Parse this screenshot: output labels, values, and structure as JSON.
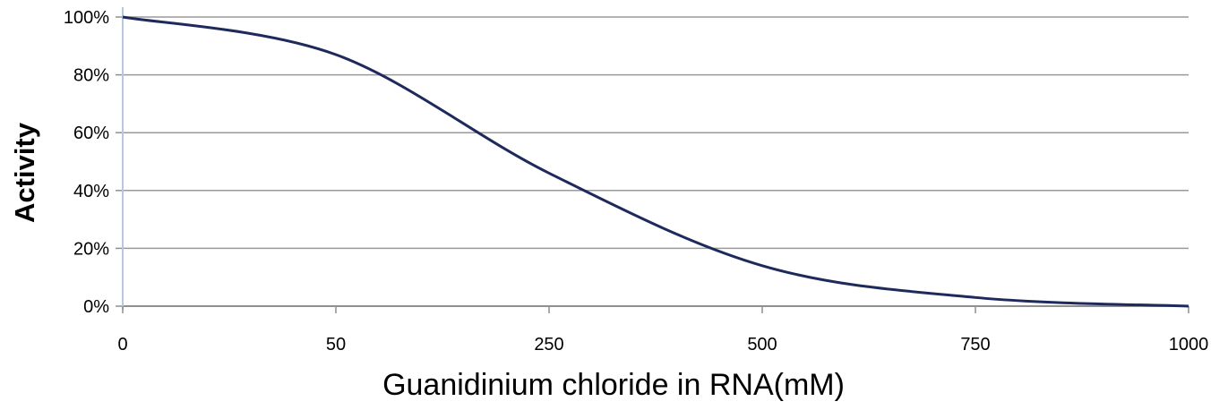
{
  "chart_data": {
    "type": "line",
    "xlabel": "Guanidinium chloride in RNA(mM)",
    "ylabel": "Activity",
    "x_ticks": [
      "0",
      "50",
      "250",
      "500",
      "750",
      "1000"
    ],
    "y_ticks": [
      "0%",
      "20%",
      "40%",
      "60%",
      "80%",
      "100%"
    ],
    "ylim": [
      0,
      100
    ],
    "grid": "horizontal",
    "legend": "none",
    "line_color": "#1f2a5c",
    "series": [
      {
        "x": [
          "0",
          "50",
          "250",
          "500",
          "750",
          "1000"
        ],
        "values": [
          100,
          87,
          46,
          14,
          3,
          0
        ]
      }
    ]
  }
}
